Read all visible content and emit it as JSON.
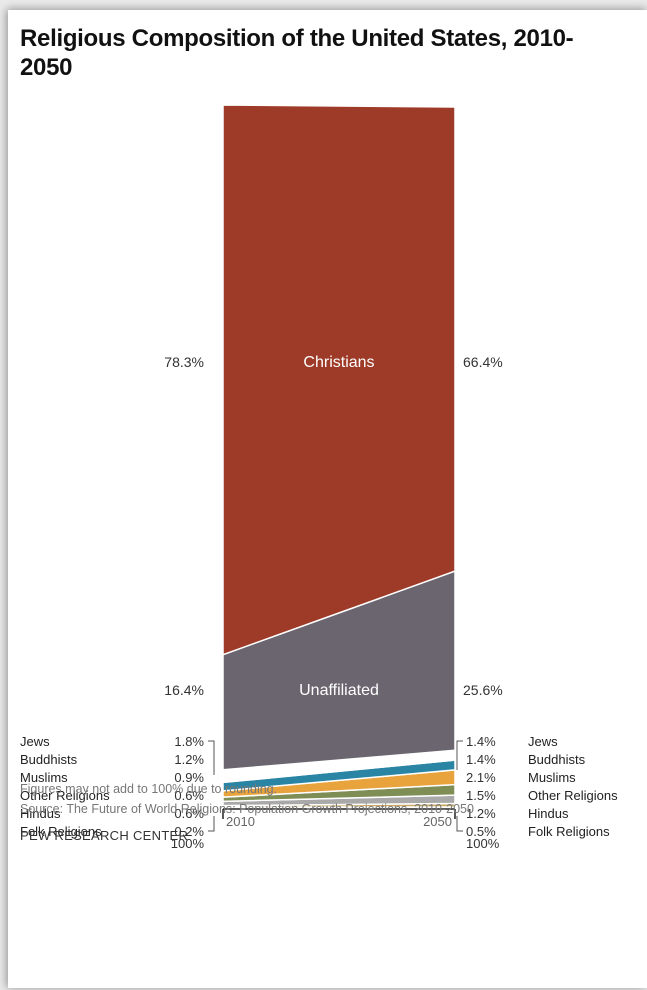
{
  "chart_data": {
    "type": "area",
    "title": "Religious Composition of the United States, 2010-2050",
    "x": [
      "2010",
      "2050"
    ],
    "series": [
      {
        "name": "Christians",
        "values": [
          78.3,
          66.4
        ],
        "labels": [
          "78.3%",
          "66.4%"
        ],
        "color": "#9e3b28"
      },
      {
        "name": "Unaffiliated",
        "values": [
          16.4,
          25.6
        ],
        "labels": [
          "16.4%",
          "25.6%"
        ],
        "color": "#6b6570"
      },
      {
        "name": "Jews",
        "values": [
          1.8,
          1.4
        ],
        "labels": [
          "1.8%",
          "1.4%"
        ],
        "color": "#ffffff"
      },
      {
        "name": "Buddhists",
        "values": [
          1.2,
          1.4
        ],
        "labels": [
          "1.2%",
          "1.4%"
        ],
        "color": "#2a84a4"
      },
      {
        "name": "Muslims",
        "values": [
          0.9,
          2.1
        ],
        "labels": [
          "0.9%",
          "2.1%"
        ],
        "color": "#e8a33c"
      },
      {
        "name": "Other Religions",
        "values": [
          0.6,
          1.5
        ],
        "labels": [
          "0.6%",
          "1.5%"
        ],
        "color": "#7f8e55"
      },
      {
        "name": "Hindus",
        "values": [
          0.6,
          1.2
        ],
        "labels": [
          "0.6%",
          "1.2%"
        ],
        "color": "#a9a9a9"
      },
      {
        "name": "Folk Religions",
        "values": [
          0.2,
          0.5
        ],
        "labels": [
          "0.2%",
          "0.5%"
        ],
        "color": "#c9a862"
      }
    ],
    "totals": [
      "100%",
      "100%"
    ],
    "ylim": [
      0,
      100
    ]
  },
  "notes": {
    "rounding": "Figures may not add to 100% due to rounding.",
    "source": "Source: The Future of World Religions: Population Growth Projections, 2010-2050",
    "credit": "PEW RESEARCH CENTER"
  }
}
